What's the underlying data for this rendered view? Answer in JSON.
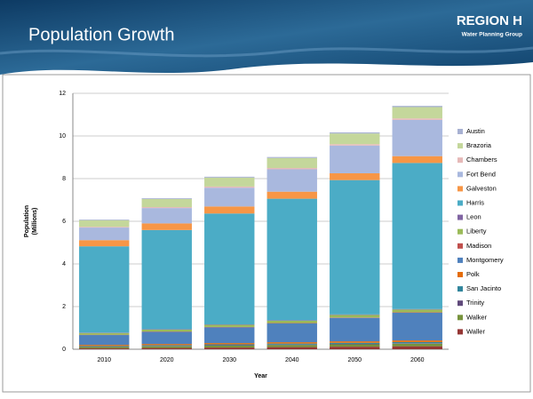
{
  "logo": {
    "title": "REGION H",
    "subtitle": "Water Planning Group"
  },
  "chart_data": {
    "type": "stacked-bar",
    "title": "Population Growth",
    "xlabel": "Year",
    "ylabel": [
      "Population",
      "(Millions)"
    ],
    "categories": [
      "2010",
      "2020",
      "2030",
      "2040",
      "2050",
      "2060"
    ],
    "ylim": [
      0,
      12
    ],
    "yticks": [
      0,
      2,
      4,
      6,
      8,
      10,
      12
    ],
    "grid": true,
    "legend": "right",
    "series": [
      {
        "name": "Austin",
        "color": "#a7b1d2",
        "values": [
          0.03,
          0.035,
          0.04,
          0.045,
          0.05,
          0.055
        ]
      },
      {
        "name": "Brazoria",
        "color": "#c4d79b",
        "values": [
          0.31,
          0.38,
          0.42,
          0.47,
          0.5,
          0.53
        ]
      },
      {
        "name": "Chambers",
        "color": "#e6b9b8",
        "values": [
          0.035,
          0.045,
          0.055,
          0.06,
          0.065,
          0.07
        ]
      },
      {
        "name": "Fort Bend",
        "color": "#a9b8de",
        "values": [
          0.59,
          0.72,
          0.88,
          1.05,
          1.3,
          1.7
        ]
      },
      {
        "name": "Galveston",
        "color": "#f79646",
        "values": [
          0.29,
          0.31,
          0.33,
          0.33,
          0.32,
          0.32
        ]
      },
      {
        "name": "Harris",
        "color": "#4bacc6",
        "values": [
          4.05,
          4.65,
          5.2,
          5.7,
          6.3,
          6.85
        ]
      },
      {
        "name": "Leon",
        "color": "#8064a2",
        "values": [
          0.017,
          0.019,
          0.02,
          0.021,
          0.022,
          0.023
        ]
      },
      {
        "name": "Liberty",
        "color": "#9bbb59",
        "values": [
          0.08,
          0.09,
          0.1,
          0.11,
          0.12,
          0.13
        ]
      },
      {
        "name": "Madison",
        "color": "#c0504d",
        "values": [
          0.014,
          0.015,
          0.016,
          0.017,
          0.018,
          0.019
        ]
      },
      {
        "name": "Montgomery",
        "color": "#4f81bd",
        "values": [
          0.46,
          0.57,
          0.74,
          0.88,
          1.1,
          1.3
        ]
      },
      {
        "name": "Polk",
        "color": "#e46c0a",
        "values": [
          0.05,
          0.055,
          0.06,
          0.065,
          0.07,
          0.075
        ]
      },
      {
        "name": "San Jacinto",
        "color": "#31859c",
        "values": [
          0.03,
          0.035,
          0.04,
          0.045,
          0.05,
          0.055
        ]
      },
      {
        "name": "Trinity",
        "color": "#604a7b",
        "values": [
          0.015,
          0.016,
          0.018,
          0.02,
          0.021,
          0.022
        ]
      },
      {
        "name": "Walker",
        "color": "#77933c",
        "values": [
          0.07,
          0.08,
          0.09,
          0.1,
          0.11,
          0.12
        ]
      },
      {
        "name": "Waller",
        "color": "#953735",
        "values": [
          0.04,
          0.06,
          0.08,
          0.1,
          0.12,
          0.14
        ]
      }
    ]
  }
}
